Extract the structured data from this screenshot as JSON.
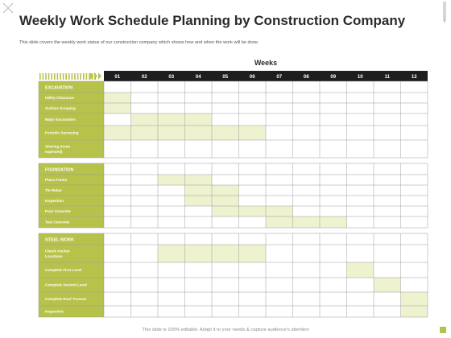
{
  "title": "Weekly Work Schedule Planning by Construction Company",
  "subtitle": "This slide covers the weekly work status of our construction company which shows how and when the work will be done.",
  "weeks_label": "Weeks",
  "weeks": [
    "01",
    "02",
    "03",
    "04",
    "05",
    "06",
    "07",
    "08",
    "09",
    "10",
    "11",
    "12"
  ],
  "footer": "This slide is 100% editable. Adapt it to your needs & capture audience's attention",
  "colors": {
    "accent": "#b6c24a",
    "bar": "#eef2cf",
    "header": "#1e1e1e",
    "text": "#2a2a2a"
  },
  "sections": [
    {
      "name": "EXCAVATION",
      "tasks": [
        {
          "label": [
            "Utility Clearance"
          ],
          "weeks": [
            1
          ]
        },
        {
          "label": [
            "Surface Scraping"
          ],
          "weeks": [
            1
          ]
        },
        {
          "label": [
            "Major Excavation"
          ],
          "weeks": [
            2,
            3,
            4
          ]
        },
        {
          "label": [
            "Periodic Surveying"
          ],
          "weeks": [
            1,
            2,
            3,
            4,
            5,
            6
          ]
        },
        {
          "label": [
            "Shoring (none",
            "expected)"
          ],
          "weeks": []
        }
      ]
    },
    {
      "name": "FOUNDATION",
      "tasks": [
        {
          "label": [
            "Place Forms"
          ],
          "weeks": [
            3,
            4
          ]
        },
        {
          "label": [
            "Tie Rebar"
          ],
          "weeks": [
            4,
            5
          ]
        },
        {
          "label": [
            "Inspection"
          ],
          "weeks": [
            4,
            5
          ]
        },
        {
          "label": [
            "Pour Concrete"
          ],
          "weeks": [
            5,
            6,
            7
          ]
        },
        {
          "label": [
            "Test Concrete"
          ],
          "weeks": [
            7,
            8,
            9
          ]
        }
      ]
    },
    {
      "name": "STEEL WORK",
      "tasks": [
        {
          "label": [
            "Check Anchor",
            "Locations"
          ],
          "weeks": [
            3,
            4,
            5,
            6
          ]
        },
        {
          "label": [
            "Complete First Level"
          ],
          "weeks": [
            10
          ]
        },
        {
          "label": [
            "Complete Second Level"
          ],
          "weeks": [
            11
          ]
        },
        {
          "label": [
            "Complete Roof Trusses"
          ],
          "weeks": [
            12
          ]
        },
        {
          "label": [
            "Inspection"
          ],
          "weeks": [
            12
          ]
        }
      ]
    }
  ]
}
